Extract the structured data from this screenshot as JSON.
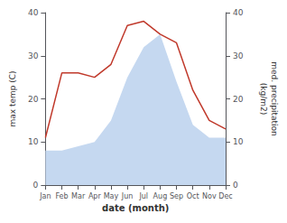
{
  "chart_data": {
    "type": "line",
    "xlabel": "date (month)",
    "ylabel": "max temp (C)",
    "y2label": "med. precipitation\n(kg/m2)",
    "categories": [
      "Jan",
      "Feb",
      "Mar",
      "Apr",
      "May",
      "Jun",
      "Jul",
      "Aug",
      "Sep",
      "Oct",
      "Nov",
      "Dec"
    ],
    "series": [
      {
        "type": "area",
        "axis": "y2",
        "color": "#c5d8f0",
        "values": [
          8,
          8,
          9,
          10,
          15,
          25,
          32,
          35,
          24,
          14,
          11,
          11
        ]
      },
      {
        "type": "line",
        "color": "#c0392b",
        "values": [
          11,
          26,
          26,
          25,
          28,
          37,
          38,
          35,
          33,
          22,
          15,
          13
        ]
      }
    ],
    "ylim": [
      0,
      40
    ],
    "yticks": [
      0,
      10,
      20,
      30,
      40
    ],
    "y2lim": [
      0,
      40
    ],
    "y2ticks": [
      0,
      10,
      20,
      30,
      40
    ],
    "grid": false
  }
}
